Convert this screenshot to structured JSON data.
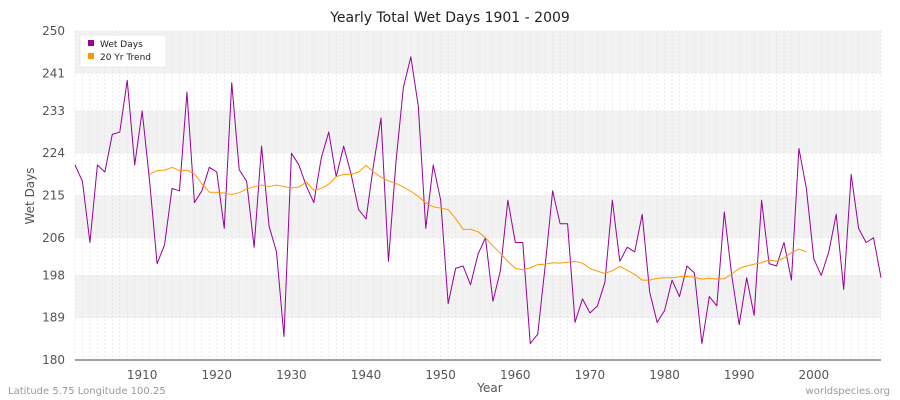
{
  "footer": {
    "location": "Latitude 5.75 Longitude 100.25",
    "source": "worldspecies.org"
  },
  "chart_data": {
    "type": "line",
    "title": "Yearly Total Wet Days 1901 - 2009",
    "xlabel": "Year",
    "ylabel": "Wet Days",
    "xlim": [
      1901,
      2009
    ],
    "ylim": [
      180,
      250
    ],
    "yticks": [
      180,
      189,
      198,
      206,
      215,
      224,
      233,
      241,
      250
    ],
    "xticks": [
      1910,
      1920,
      1930,
      1940,
      1950,
      1960,
      1970,
      1980,
      1990,
      2000
    ],
    "grid": true,
    "legend_position": "top-left",
    "series": [
      {
        "name": "Wet Days",
        "color": "#990099",
        "x": [
          1901,
          1902,
          1903,
          1904,
          1905,
          1906,
          1907,
          1908,
          1909,
          1910,
          1911,
          1912,
          1913,
          1914,
          1915,
          1916,
          1917,
          1918,
          1919,
          1920,
          1921,
          1922,
          1923,
          1924,
          1925,
          1926,
          1927,
          1928,
          1929,
          1930,
          1931,
          1932,
          1933,
          1934,
          1935,
          1936,
          1937,
          1938,
          1939,
          1940,
          1941,
          1942,
          1943,
          1944,
          1945,
          1946,
          1947,
          1948,
          1949,
          1950,
          1951,
          1952,
          1953,
          1954,
          1955,
          1956,
          1957,
          1958,
          1959,
          1960,
          1961,
          1962,
          1963,
          1964,
          1965,
          1966,
          1967,
          1968,
          1969,
          1970,
          1971,
          1972,
          1973,
          1974,
          1975,
          1976,
          1977,
          1978,
          1979,
          1980,
          1981,
          1982,
          1983,
          1984,
          1985,
          1986,
          1987,
          1988,
          1989,
          1990,
          1991,
          1992,
          1993,
          1994,
          1995,
          1996,
          1997,
          1998,
          1999,
          2000,
          2001,
          2002,
          2003,
          2004,
          2005,
          2006,
          2007,
          2008,
          2009
        ],
        "values": [
          221.5,
          218,
          205,
          221.5,
          220,
          228,
          228.5,
          239.5,
          221.5,
          233,
          218,
          200.5,
          204.5,
          216.5,
          216,
          237,
          213.5,
          216,
          221,
          220,
          208,
          239,
          220.5,
          218,
          204,
          225.5,
          208.5,
          203,
          185,
          224,
          221.5,
          217,
          213.5,
          223,
          228.5,
          219,
          225.5,
          219.5,
          212,
          210,
          221.5,
          231.5,
          201,
          222,
          238,
          244.5,
          234,
          208,
          221.5,
          214,
          192,
          199.5,
          200,
          196,
          202.5,
          206,
          192.5,
          199,
          214,
          205,
          205,
          183.5,
          185.5,
          200,
          216,
          209,
          209,
          188,
          193,
          190,
          191.5,
          196.5,
          214,
          201,
          204,
          203,
          211,
          194.5,
          188,
          190.5,
          197,
          193.5,
          200,
          198.5,
          183.5,
          193.5,
          191.5,
          211.5,
          198,
          187.5,
          197.5,
          189.5,
          214,
          200.5,
          200,
          205,
          197,
          225,
          216.5,
          201.5,
          198,
          203,
          211,
          195,
          219.5,
          208,
          205,
          206,
          197.5
        ]
      },
      {
        "name": "20 Yr Trend",
        "color": "#ff9900",
        "x": [
          1911,
          1912,
          1913,
          1914,
          1915,
          1916,
          1917,
          1918,
          1919,
          1920,
          1921,
          1922,
          1923,
          1924,
          1925,
          1926,
          1927,
          1928,
          1929,
          1930,
          1931,
          1932,
          1933,
          1934,
          1935,
          1936,
          1937,
          1938,
          1939,
          1940,
          1941,
          1942,
          1943,
          1944,
          1945,
          1946,
          1947,
          1948,
          1949,
          1950,
          1951,
          1952,
          1953,
          1954,
          1955,
          1956,
          1957,
          1958,
          1959,
          1960,
          1961,
          1962,
          1963,
          1964,
          1965,
          1966,
          1967,
          1968,
          1969,
          1970,
          1971,
          1972,
          1973,
          1974,
          1975,
          1976,
          1977,
          1978,
          1979,
          1980,
          1981,
          1982,
          1983,
          1984,
          1985,
          1986,
          1987,
          1988,
          1989,
          1990,
          1991,
          1992,
          1993,
          1994,
          1995,
          1996,
          1997,
          1998,
          1999
        ],
        "values": [
          219.5,
          220.3,
          220.4,
          221,
          220.3,
          220.4,
          219.6,
          217.5,
          215.7,
          215.7,
          215.5,
          215.2,
          215.6,
          216.4,
          216.9,
          217.2,
          216.9,
          217.2,
          216.9,
          216.6,
          216.8,
          217.9,
          216.1,
          216.5,
          217.4,
          219,
          219.5,
          219.5,
          220,
          221.4,
          220,
          218.9,
          218.1,
          217.6,
          216.8,
          215.9,
          214.8,
          213.4,
          212.6,
          212.3,
          212,
          210.1,
          207.8,
          207.8,
          207.3,
          206,
          204.3,
          202.7,
          201,
          199.5,
          199.2,
          199.6,
          200.3,
          200.4,
          200.7,
          200.6,
          200.8,
          201,
          200.6,
          199.5,
          198.9,
          198.4,
          199,
          199.9,
          199.1,
          198.2,
          197,
          197,
          197.4,
          197.5,
          197.5,
          197.7,
          197.8,
          197.6,
          197.2,
          197.4,
          197.2,
          197.3,
          198.3,
          199.5,
          200,
          200.4,
          200.7,
          201.3,
          201,
          201.7,
          202.8,
          203.6,
          203
        ]
      }
    ]
  }
}
